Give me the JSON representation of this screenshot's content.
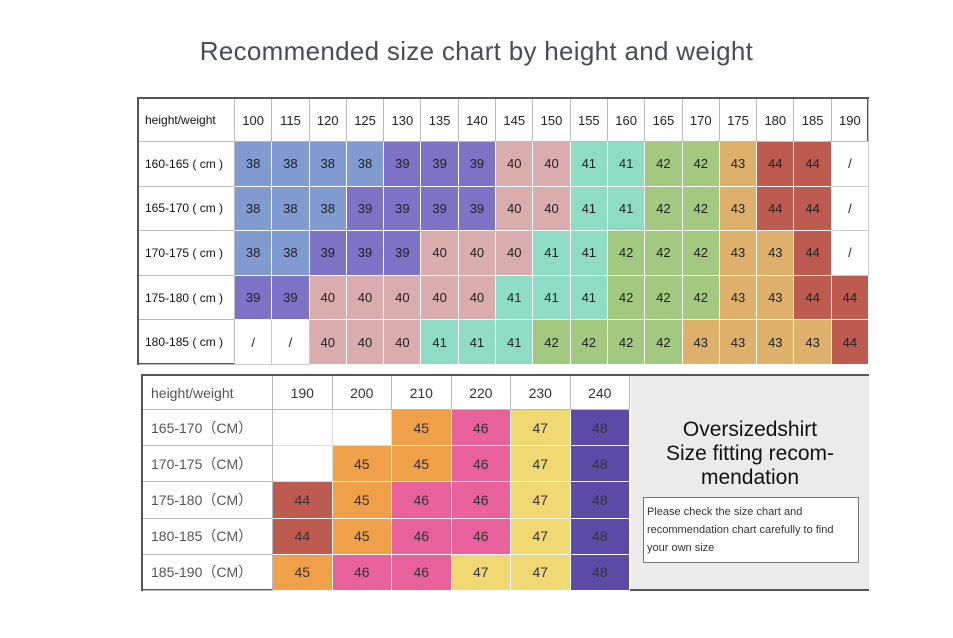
{
  "title": "Recommended size chart by height and weight",
  "chart_data": [
    {
      "type": "table",
      "corner_label": "height/weight",
      "columns": [
        "100",
        "115",
        "120",
        "125",
        "130",
        "135",
        "140",
        "145",
        "150",
        "155",
        "160",
        "165",
        "170",
        "175",
        "180",
        "185",
        "190"
      ],
      "rows": [
        {
          "label": "160-165 ( cm )",
          "values": [
            "38",
            "38",
            "38",
            "38",
            "39",
            "39",
            "39",
            "40",
            "40",
            "41",
            "41",
            "42",
            "42",
            "43",
            "44",
            "44",
            "/"
          ]
        },
        {
          "label": "165-170 ( cm )",
          "values": [
            "38",
            "38",
            "38",
            "39",
            "39",
            "39",
            "39",
            "40",
            "40",
            "41",
            "41",
            "42",
            "42",
            "43",
            "44",
            "44",
            "/"
          ]
        },
        {
          "label": "170-175 ( cm )",
          "values": [
            "38",
            "38",
            "39",
            "39",
            "39",
            "40",
            "40",
            "40",
            "41",
            "41",
            "42",
            "42",
            "42",
            "43",
            "43",
            "44",
            "/"
          ]
        },
        {
          "label": "175-180 ( cm )",
          "values": [
            "39",
            "39",
            "40",
            "40",
            "40",
            "40",
            "40",
            "41",
            "41",
            "41",
            "42",
            "42",
            "42",
            "43",
            "43",
            "44",
            "44"
          ]
        },
        {
          "label": "180-185 ( cm )",
          "values": [
            "/",
            "/",
            "40",
            "40",
            "40",
            "41",
            "41",
            "41",
            "42",
            "42",
            "42",
            "42",
            "43",
            "43",
            "43",
            "43",
            "44"
          ]
        }
      ]
    },
    {
      "type": "table",
      "corner_label": "height/weight",
      "columns": [
        "190",
        "200",
        "210",
        "220",
        "230",
        "240"
      ],
      "rows": [
        {
          "label": "165-170（CM）",
          "values": [
            "",
            "",
            "45",
            "46",
            "47",
            "48"
          ]
        },
        {
          "label": "170-175（CM）",
          "values": [
            "",
            "45",
            "45",
            "46",
            "47",
            "48"
          ]
        },
        {
          "label": "175-180（CM）",
          "values": [
            "44",
            "45",
            "46",
            "46",
            "47",
            "48"
          ]
        },
        {
          "label": "180-185（CM）",
          "values": [
            "44",
            "45",
            "46",
            "46",
            "47",
            "48"
          ]
        },
        {
          "label": "185-190（CM）",
          "values": [
            "45",
            "46",
            "46",
            "47",
            "47",
            "48"
          ]
        }
      ]
    }
  ],
  "size_colors": {
    "38": "#7f9bcf",
    "39": "#7d72c6",
    "40": "#d9acad",
    "41": "#8fdcc4",
    "42": "#a3c981",
    "43": "#ddb06c",
    "44": "#bd5b50",
    "45": "#f0a048",
    "46": "#e9619b",
    "47": "#f0d873",
    "48": "#5c4ba6",
    "/": "#ffffff",
    "": "#ffffff"
  },
  "info": {
    "heading_lines": [
      "Oversizedshirt",
      "Size fitting recom-",
      "mendation"
    ],
    "note": "Please check the size chart and recommendation chart carefully to find your own size"
  }
}
